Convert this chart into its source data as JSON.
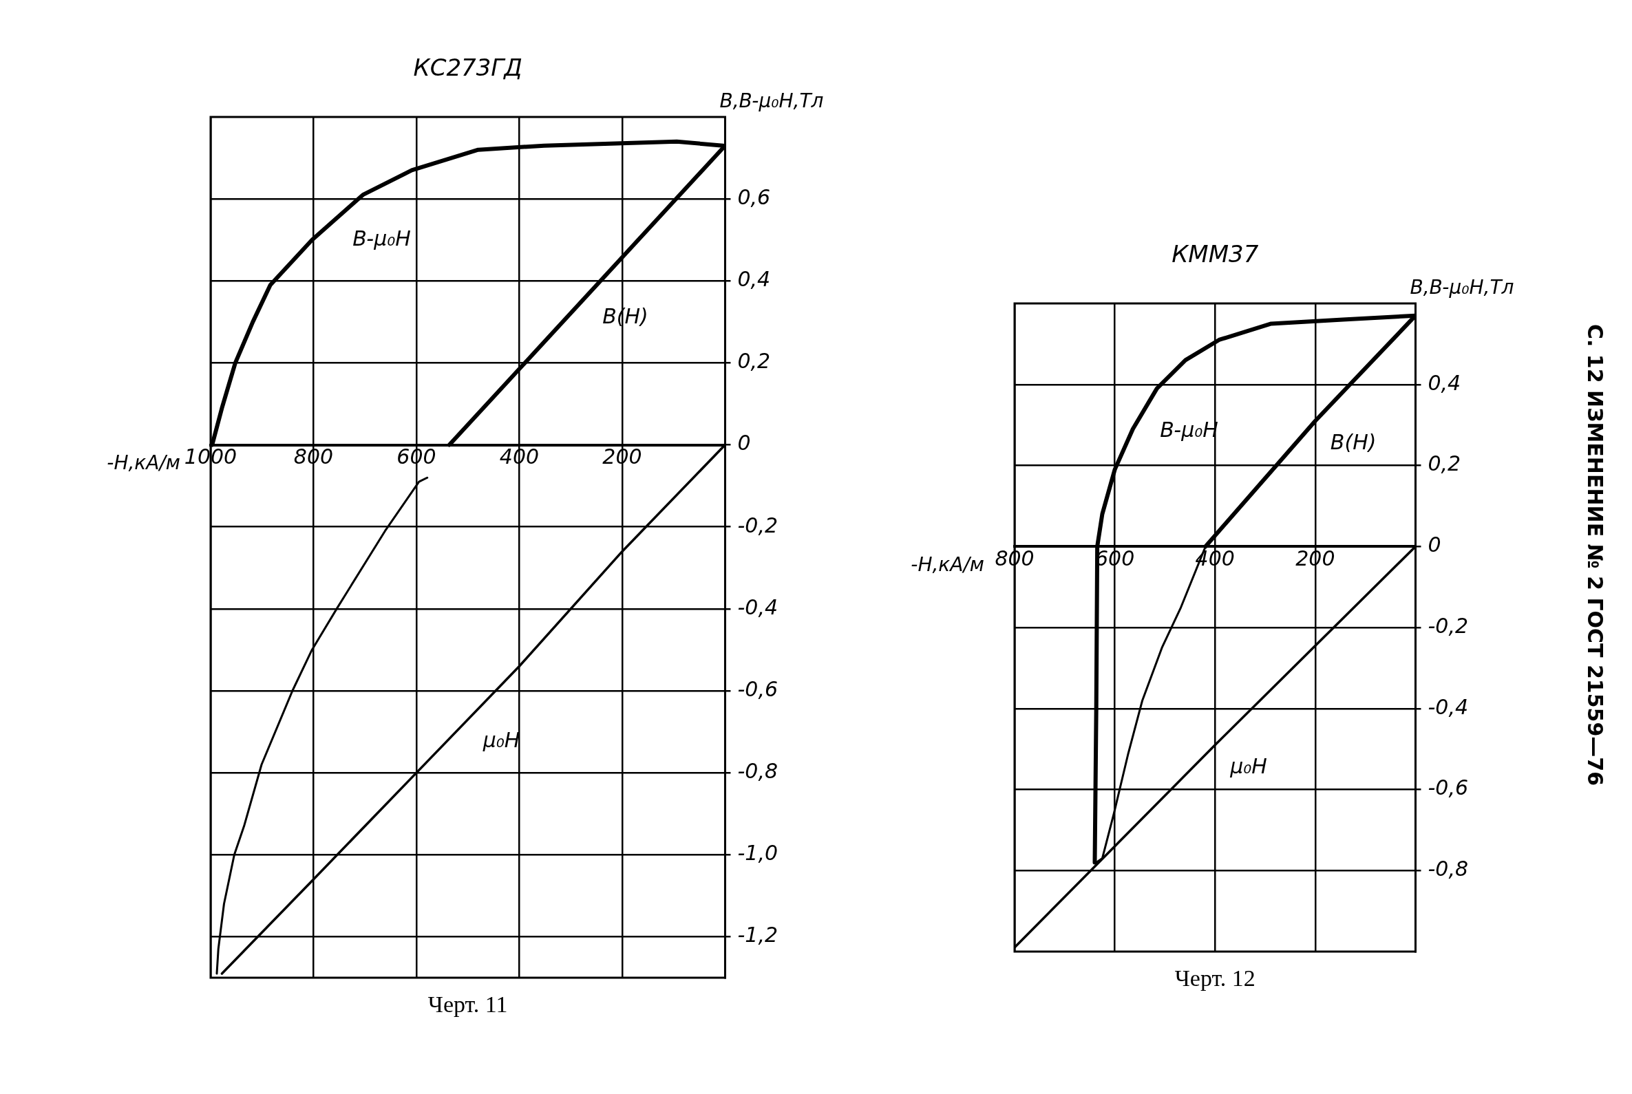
{
  "chart_data": [
    {
      "type": "line",
      "title": "КС273ГД",
      "xlabel": "-H,кА/м",
      "ylabel": "B,B-μ₀H,Тл",
      "xlim": [
        1000,
        0
      ],
      "xticks": [
        1000,
        800,
        600,
        400,
        200
      ],
      "ylim": [
        -1.3,
        0.8
      ],
      "yticks": [
        {
          "value": 0.6,
          "label": "0,6"
        },
        {
          "value": 0.4,
          "label": "0,4"
        },
        {
          "value": 0.2,
          "label": "0,2"
        },
        0,
        {
          "value": -0.2,
          "label": "-0,2"
        },
        {
          "value": -0.4,
          "label": "-0,4"
        },
        {
          "value": -0.6,
          "label": "-0,6"
        },
        {
          "value": -0.8,
          "label": "-0,8"
        },
        {
          "value": -1.0,
          "label": "-1,0"
        },
        {
          "value": -1.2,
          "label": "-1,2"
        }
      ],
      "grid": true,
      "marker": "none",
      "series": [
        {
          "name": "B-μ₀H",
          "color": "#000000",
          "x": [
            997,
            978,
            952,
            918,
            884,
            803,
            704,
            609,
            480,
            352,
            94,
            4
          ],
          "values": [
            0,
            0.09,
            0.2,
            0.3,
            0.39,
            0.5,
            0.61,
            0.67,
            0.72,
            0.73,
            0.74,
            0.73
          ]
        },
        {
          "name": "B(H)",
          "color": "#000000",
          "x": [
            0,
            536
          ],
          "values": [
            0.73,
            0
          ]
        },
        {
          "name": "μ₀H",
          "color": "#000000",
          "x": [
            0,
            200,
            400,
            600,
            800,
            978
          ],
          "values": [
            0,
            -0.26,
            -0.54,
            -0.8,
            -1.06,
            -1.29
          ]
        },
        {
          "color": "#000000",
          "x": [
            579,
            595,
            661,
            755,
            803,
            841,
            901,
            935,
            954,
            974,
            985,
            988
          ],
          "values": [
            -0.08,
            -0.09,
            -0.21,
            -0.4,
            -0.5,
            -0.6,
            -0.78,
            -0.93,
            -1.0,
            -1.12,
            -1.23,
            -1.29
          ]
        }
      ],
      "annotations": [
        "Черт. 11"
      ]
    },
    {
      "type": "line",
      "title": "КММ37",
      "xlabel": "-H,кА/м",
      "ylabel": "B,B-μ₀H,Тл",
      "xlim": [
        800,
        0
      ],
      "xticks": [
        800,
        600,
        400,
        200
      ],
      "ylim": [
        -1.0,
        0.6
      ],
      "yticks": [
        {
          "value": 0.4,
          "label": "0,4"
        },
        {
          "value": 0.2,
          "label": "0,2"
        },
        0,
        {
          "value": -0.2,
          "label": "-0,2"
        },
        {
          "value": -0.4,
          "label": "-0,4"
        },
        {
          "value": -0.6,
          "label": "-0,6"
        },
        {
          "value": -0.8,
          "label": "-0,8"
        }
      ],
      "grid": true,
      "marker": "none",
      "series": [
        {
          "name": "B-μ₀H",
          "color": "#000000",
          "x": [
            640,
            637,
            635,
            625,
            600,
            564,
            516,
            459,
            392,
            288,
            145,
            0
          ],
          "values": [
            -0.78,
            -0.4,
            0,
            0.08,
            0.19,
            0.29,
            0.39,
            0.46,
            0.51,
            0.55,
            0.56,
            0.57
          ]
        },
        {
          "name": "B(H)",
          "color": "#000000",
          "x": [
            0,
            200,
            419
          ],
          "values": [
            0.57,
            0.31,
            0
          ]
        },
        {
          "name": "μ₀H",
          "color": "#000000",
          "x": [
            0,
            400,
            800
          ],
          "values": [
            0,
            -0.49,
            -0.99
          ]
        },
        {
          "color": "#000000",
          "x": [
            419,
            468,
            506,
            545,
            573,
            602,
            625,
            637
          ],
          "values": [
            0,
            -0.15,
            -0.25,
            -0.38,
            -0.51,
            -0.66,
            -0.77,
            -0.78
          ]
        }
      ],
      "annotations": [
        "Черт. 12",
        "С. 12 ИЗМЕНЕНИЕ № 2 ГОСТ 21559—76"
      ]
    }
  ]
}
